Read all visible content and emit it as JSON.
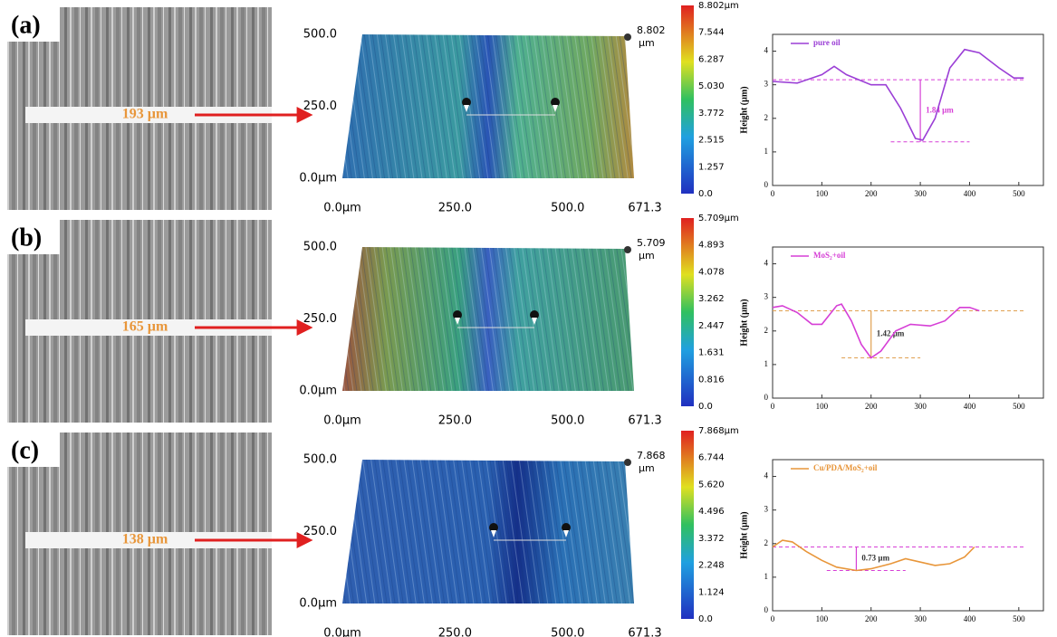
{
  "rows": [
    {
      "label": "(a)",
      "width_label": "193 µm",
      "surface": {
        "peak_label": "8.802",
        "peak_unit": "µm",
        "xlim": [
          0,
          671.3
        ],
        "ylim": [
          0,
          500
        ],
        "xticks": [
          {
            "value": 0,
            "label": "0.0µm"
          },
          {
            "value": 250,
            "label": "250.0"
          },
          {
            "value": 500,
            "label": "500.0"
          },
          {
            "value": 671.3,
            "label": "671.3"
          }
        ],
        "yticks": [
          {
            "value": 0,
            "label": "0.0µm"
          },
          {
            "value": 250,
            "label": "250.0"
          },
          {
            "value": 500,
            "label": "500.0"
          }
        ],
        "clim": [
          0,
          8.802
        ],
        "cticks": [
          {
            "value": 0,
            "label": "0.0"
          },
          {
            "value": 1.257,
            "label": "1.257"
          },
          {
            "value": 2.515,
            "label": "2.515"
          },
          {
            "value": 3.772,
            "label": "3.772"
          },
          {
            "value": 5.03,
            "label": "5.030"
          },
          {
            "value": 6.287,
            "label": "6.287"
          },
          {
            "value": 7.544,
            "label": "7.544"
          },
          {
            "value": 8.802,
            "label": "8.802µm"
          }
        ]
      },
      "chart_data": {
        "type": "line",
        "y_label": "Height (µm)",
        "xlim": [
          0,
          550
        ],
        "ylim": [
          0,
          4.5
        ],
        "xticks": [
          0,
          100,
          200,
          300,
          400,
          500
        ],
        "yticks": [
          0,
          1,
          2,
          3,
          4
        ],
        "series": [
          {
            "name": "pure oil",
            "color": "#9b3fd6",
            "x": [
              0,
              50,
              100,
              125,
              150,
              200,
              230,
              260,
              290,
              305,
              330,
              360,
              390,
              420,
              460,
              490,
              510
            ],
            "values": [
              3.1,
              3.05,
              3.3,
              3.55,
              3.3,
              3.0,
              3.0,
              2.3,
              1.4,
              1.35,
              2.0,
              3.5,
              4.05,
              3.95,
              3.5,
              3.2,
              3.2
            ]
          }
        ],
        "ref_upper": 3.15,
        "ref_lower": 1.3,
        "ref_x": 300,
        "depth_label": "1.84 µm",
        "ref_color": "#d63fd6"
      }
    },
    {
      "label": "(b)",
      "width_label": "165 µm",
      "surface": {
        "peak_label": "5.709",
        "peak_unit": "µm",
        "xlim": [
          0,
          671.3
        ],
        "ylim": [
          0,
          500
        ],
        "xticks": [
          {
            "value": 0,
            "label": "0.0µm"
          },
          {
            "value": 250,
            "label": "250.0"
          },
          {
            "value": 500,
            "label": "500.0"
          },
          {
            "value": 671.3,
            "label": "671.3"
          }
        ],
        "yticks": [
          {
            "value": 0,
            "label": "0.0µm"
          },
          {
            "value": 250,
            "label": "250.0"
          },
          {
            "value": 500,
            "label": "500.0"
          }
        ],
        "clim": [
          0,
          5.709
        ],
        "cticks": [
          {
            "value": 0,
            "label": "0.0"
          },
          {
            "value": 0.816,
            "label": "0.816"
          },
          {
            "value": 1.631,
            "label": "1.631"
          },
          {
            "value": 2.447,
            "label": "2.447"
          },
          {
            "value": 3.262,
            "label": "3.262"
          },
          {
            "value": 4.078,
            "label": "4.078"
          },
          {
            "value": 4.893,
            "label": "4.893"
          },
          {
            "value": 5.709,
            "label": "5.709µm"
          }
        ]
      },
      "chart_data": {
        "type": "line",
        "y_label": "Height (µm)",
        "xlim": [
          0,
          550
        ],
        "ylim": [
          0,
          4.5
        ],
        "xticks": [
          0,
          100,
          200,
          300,
          400,
          500
        ],
        "yticks": [
          0,
          1,
          2,
          3,
          4
        ],
        "series": [
          {
            "name": "MoS₂+oil",
            "color": "#d63fd6",
            "x": [
              0,
              20,
              50,
              80,
              100,
              130,
              140,
              160,
              180,
              200,
              220,
              250,
              280,
              320,
              350,
              380,
              400,
              420
            ],
            "values": [
              2.7,
              2.75,
              2.55,
              2.2,
              2.2,
              2.75,
              2.8,
              2.3,
              1.6,
              1.2,
              1.4,
              2.0,
              2.2,
              2.15,
              2.3,
              2.7,
              2.7,
              2.6
            ]
          }
        ],
        "ref_upper": 2.6,
        "ref_lower": 1.2,
        "ref_x": 200,
        "depth_label": "1.42 µm",
        "ref_color": "#e0a050"
      }
    },
    {
      "label": "(c)",
      "width_label": "138 µm",
      "surface": {
        "peak_label": "7.868",
        "peak_unit": "µm",
        "xlim": [
          0,
          671.3
        ],
        "ylim": [
          0,
          500
        ],
        "xticks": [
          {
            "value": 0,
            "label": "0.0µm"
          },
          {
            "value": 250,
            "label": "250.0"
          },
          {
            "value": 500,
            "label": "500.0"
          },
          {
            "value": 671.3,
            "label": "671.3"
          }
        ],
        "yticks": [
          {
            "value": 0,
            "label": "0.0µm"
          },
          {
            "value": 250,
            "label": "250.0"
          },
          {
            "value": 500,
            "label": "500.0"
          }
        ],
        "clim": [
          0,
          7.868
        ],
        "cticks": [
          {
            "value": 0,
            "label": "0.0"
          },
          {
            "value": 1.124,
            "label": "1.124"
          },
          {
            "value": 2.248,
            "label": "2.248"
          },
          {
            "value": 3.372,
            "label": "3.372"
          },
          {
            "value": 4.496,
            "label": "4.496"
          },
          {
            "value": 5.62,
            "label": "5.620"
          },
          {
            "value": 6.744,
            "label": "6.744"
          },
          {
            "value": 7.868,
            "label": "7.868µm"
          }
        ]
      },
      "chart_data": {
        "type": "line",
        "y_label": "Height (µm)",
        "xlim": [
          0,
          550
        ],
        "ylim": [
          0,
          4.5
        ],
        "xticks": [
          0,
          100,
          200,
          300,
          400,
          500
        ],
        "yticks": [
          0,
          1,
          2,
          3,
          4
        ],
        "series": [
          {
            "name": "Cu/PDA/MoS₂+oil",
            "color": "#e8963a",
            "x": [
              0,
              20,
              40,
              70,
              100,
              130,
              170,
              200,
              240,
              270,
              300,
              330,
              360,
              390,
              410
            ],
            "values": [
              1.9,
              2.1,
              2.05,
              1.75,
              1.5,
              1.3,
              1.2,
              1.25,
              1.4,
              1.55,
              1.45,
              1.35,
              1.4,
              1.6,
              1.9
            ]
          }
        ],
        "ref_upper": 1.9,
        "ref_lower": 1.2,
        "ref_x": 170,
        "depth_label": "0.73 µm",
        "ref_color": "#d63fd6"
      }
    }
  ]
}
